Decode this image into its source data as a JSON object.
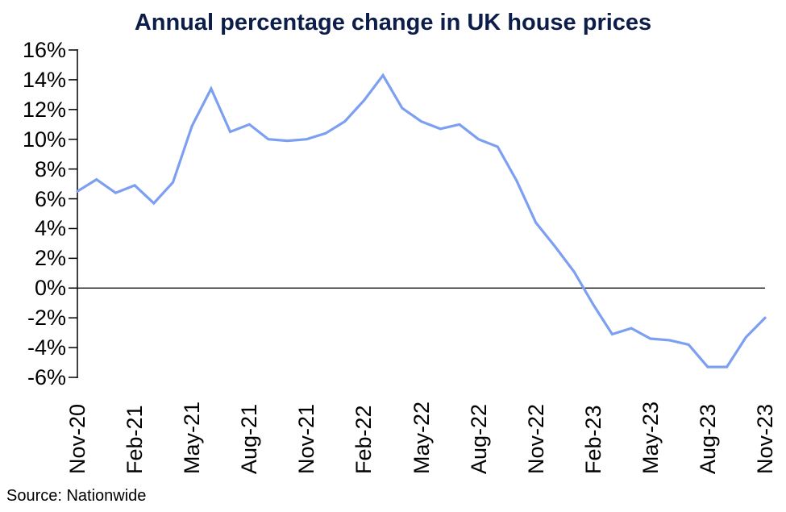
{
  "chart": {
    "title": "Annual percentage change in UK house prices",
    "source_text": "Source: Nationwide"
  },
  "chart_data": {
    "type": "line",
    "title": "Annual percentage change in UK house prices",
    "x": [
      "Nov-20",
      "Dec-20",
      "Jan-21",
      "Feb-21",
      "Mar-21",
      "Apr-21",
      "May-21",
      "Jun-21",
      "Jul-21",
      "Aug-21",
      "Sep-21",
      "Oct-21",
      "Nov-21",
      "Dec-21",
      "Jan-22",
      "Feb-22",
      "Mar-22",
      "Apr-22",
      "May-22",
      "Jun-22",
      "Jul-22",
      "Aug-22",
      "Sep-22",
      "Oct-22",
      "Nov-22",
      "Dec-22",
      "Jan-23",
      "Feb-23",
      "Mar-23",
      "Apr-23",
      "May-23",
      "Jun-23",
      "Jul-23",
      "Aug-23",
      "Sep-23",
      "Oct-23",
      "Nov-23"
    ],
    "values": [
      6.5,
      7.3,
      6.4,
      6.9,
      5.7,
      7.1,
      10.9,
      13.4,
      10.5,
      11.0,
      10.0,
      9.9,
      10.0,
      10.4,
      11.2,
      12.6,
      14.3,
      12.1,
      11.2,
      10.7,
      11.0,
      10.0,
      9.5,
      7.2,
      4.4,
      2.8,
      1.1,
      -1.1,
      -3.1,
      -2.7,
      -3.4,
      -3.5,
      -3.8,
      -5.3,
      -5.3,
      -3.3,
      -2.0
    ],
    "x_tick_labels": [
      "Nov-20",
      "Feb-21",
      "May-21",
      "Aug-21",
      "Nov-21",
      "Feb-22",
      "May-22",
      "Aug-22",
      "Nov-22",
      "Feb-23",
      "May-23",
      "Aug-23",
      "Nov-23"
    ],
    "y_ticks": [
      16,
      14,
      12,
      10,
      8,
      6,
      4,
      2,
      0,
      -2,
      -4,
      -6
    ],
    "y_tick_labels": [
      "16%",
      "14%",
      "12%",
      "10%",
      "8%",
      "6%",
      "4%",
      "2%",
      "0%",
      "-2%",
      "-4%",
      "-6%"
    ],
    "ylim": [
      -6,
      16
    ],
    "xlabel": "",
    "ylabel": "",
    "grid": false,
    "legend_position": "none",
    "zero_line": true,
    "line_color": "#7d9ff2",
    "axis_color": "#000000",
    "title_color": "#0c1d4a",
    "source": "Source: Nationwide"
  }
}
